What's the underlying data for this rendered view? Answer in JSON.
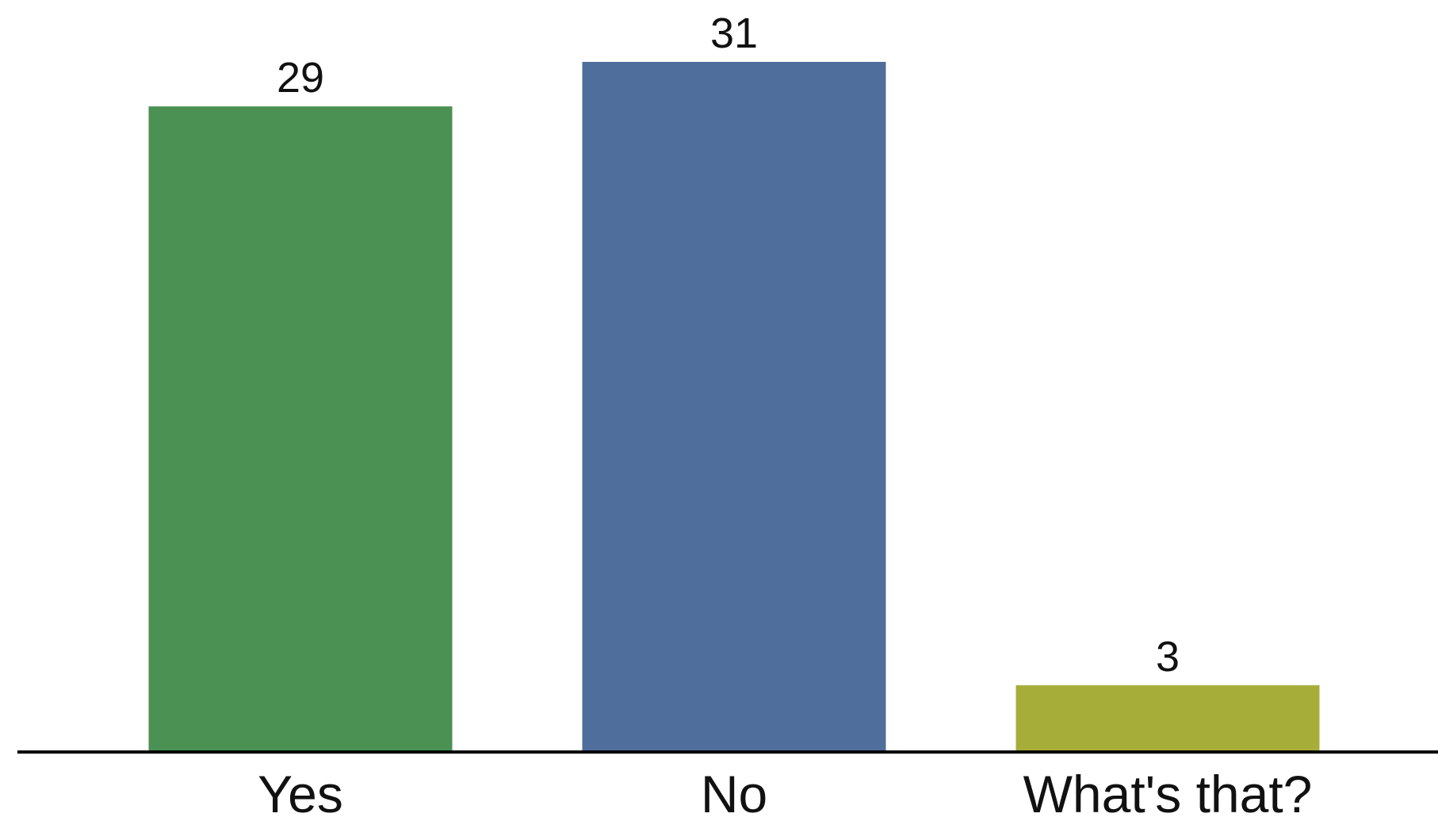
{
  "chart_data": {
    "type": "bar",
    "categories": [
      "Yes",
      "No",
      "What's that?"
    ],
    "values": [
      29,
      31,
      3
    ],
    "colors": [
      "#4a9153",
      "#506e9c",
      "#a7ad39"
    ],
    "title": "",
    "xlabel": "",
    "ylabel": "",
    "ylim": [
      0,
      31
    ],
    "grid": false,
    "legend": "none"
  }
}
